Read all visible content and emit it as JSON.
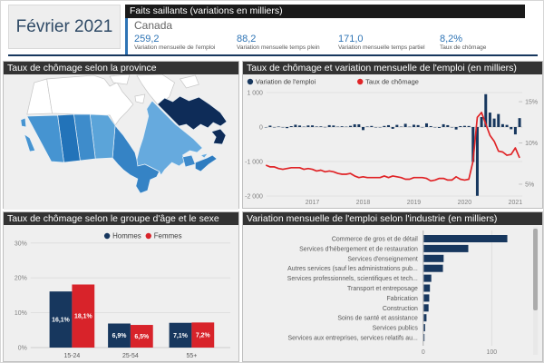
{
  "header": {
    "period": "Février 2021",
    "highlights_title": "Faits saillants (variations en milliers)",
    "region": "Canada",
    "stats": [
      {
        "value": "259,2",
        "label": "Variation mensuelle de l'emploi"
      },
      {
        "value": "88,2",
        "label": "Variation mensuelle temps plein"
      },
      {
        "value": "171,0",
        "label": "Variation mensuelle temps partiel"
      },
      {
        "value": "8,2%",
        "label": "Taux de chômage"
      }
    ]
  },
  "colors": {
    "navy": "#17375e",
    "red": "#d8232a",
    "line_red": "#e02427",
    "accent_blue": "#2e74b5",
    "panel_title_bg": "#333333",
    "header_bar_bg": "#1a1a1a",
    "panel_bg": "#efefef",
    "axis_text": "#808080",
    "label_text": "#595959"
  },
  "panels": {
    "map": {
      "title": "Taux de chômage selon la province",
      "no_data_fill": "#ffffff",
      "provinces": [
        {
          "id": "bc",
          "fill": "#4694d1"
        },
        {
          "id": "ab",
          "fill": "#2273b9"
        },
        {
          "id": "sk",
          "fill": "#3e8ccb"
        },
        {
          "id": "mb",
          "fill": "#5ba4d9"
        },
        {
          "id": "on",
          "fill": "#3583c5"
        },
        {
          "id": "qc",
          "fill": "#66aade"
        },
        {
          "id": "nb",
          "fill": "#3e8acb"
        },
        {
          "id": "pe",
          "fill": "#66aade"
        },
        {
          "id": "ns",
          "fill": "#2e7cc0"
        },
        {
          "id": "nl",
          "fill": "#0e2c58"
        }
      ]
    },
    "combo": {
      "title": "Taux de chômage et variation mensuelle de l'emploi (en milliers)"
    },
    "age_sex": {
      "title": "Taux de chômage selon le groupe d'âge et le sexe"
    },
    "industry": {
      "title": "Variation mensuelle de l'emploi selon l'industrie (en milliers)"
    }
  },
  "chart_data": [
    {
      "id": "employment-combo",
      "type": "bar+line",
      "title": "Taux de chômage et variation mensuelle de l'emploi (en milliers)",
      "x_start": "2016-02",
      "x_end": "2021-02",
      "x_tick_labels": [
        "2017",
        "2018",
        "2019",
        "2020",
        "2021"
      ],
      "left_axis": {
        "tick_labels": [
          "1 000",
          "0",
          "-1 000",
          "-2 000"
        ],
        "tick_values": [
          1000,
          0,
          -1000,
          -2000
        ]
      },
      "right_axis": {
        "tick_labels": [
          "15%",
          "10%",
          "5%"
        ],
        "tick_values": [
          15,
          10,
          5
        ]
      },
      "grid": true,
      "legend_position": "top-left",
      "series": [
        {
          "name": "Variation de l'emploi",
          "type": "bar",
          "axis": "left",
          "color": "#17375e",
          "values": [
            -2,
            41,
            -2,
            14,
            -1,
            -31,
            26,
            67,
            44,
            11,
            46,
            48,
            15,
            19,
            3,
            55,
            45,
            11,
            22,
            10,
            35,
            80,
            79,
            -88,
            15,
            32,
            -1,
            -7,
            32,
            54,
            -51,
            63,
            11,
            94,
            9,
            67,
            56,
            -7,
            107,
            27,
            -2,
            -24,
            81,
            54,
            -2,
            -71,
            27,
            35,
            30,
            -1011,
            -1994,
            290,
            953,
            419,
            246,
            378,
            84,
            62,
            -63,
            -213,
            259
          ]
        },
        {
          "name": "Taux de chômage",
          "type": "line",
          "axis": "right",
          "color": "#e02427",
          "values": [
            7.3,
            7.1,
            7.1,
            6.9,
            6.8,
            6.9,
            7.0,
            7.0,
            7.0,
            6.8,
            6.9,
            6.8,
            6.6,
            6.7,
            6.5,
            6.6,
            6.5,
            6.3,
            6.2,
            6.2,
            6.3,
            6.0,
            5.8,
            5.9,
            5.8,
            5.8,
            5.8,
            5.8,
            6.0,
            5.8,
            6.0,
            5.9,
            5.8,
            5.6,
            5.6,
            5.8,
            5.8,
            5.8,
            5.7,
            5.4,
            5.5,
            5.7,
            5.7,
            5.5,
            5.5,
            5.9,
            5.6,
            5.5,
            5.6,
            7.8,
            13.1,
            13.7,
            12.3,
            10.9,
            10.2,
            9.0,
            8.9,
            8.5,
            8.6,
            9.4,
            8.2
          ]
        }
      ]
    },
    {
      "id": "age-sex",
      "type": "bar",
      "title": "Taux de chômage selon le groupe d'âge et le sexe",
      "categories": [
        "15-24",
        "25-54",
        "55+"
      ],
      "yticks": [
        "0%",
        "10%",
        "20%",
        "30%"
      ],
      "ytick_values": [
        0,
        10,
        20,
        30
      ],
      "ylim": [
        0,
        33
      ],
      "grid": true,
      "legend_position": "top-center",
      "series": [
        {
          "name": "Hommes",
          "color": "#17375e",
          "values": [
            16.1,
            6.9,
            7.1
          ],
          "labels": [
            "16,1%",
            "6,9%",
            "7,1%"
          ]
        },
        {
          "name": "Femmes",
          "color": "#d8232a",
          "values": [
            18.1,
            6.5,
            7.2
          ],
          "labels": [
            "18,1%",
            "6,5%",
            "7,2%"
          ]
        }
      ]
    },
    {
      "id": "industry",
      "type": "bar-horizontal",
      "title": "Variation mensuelle de l'emploi selon l'industrie (en milliers)",
      "categories": [
        "Commerce de gros et de détail",
        "Services d'hébergement et de restauration",
        "Services d'enseignement",
        "Autres services (sauf les administrations pub...",
        "Services professionnels, scientifiques et tech...",
        "Transport et entreposage",
        "Fabrication",
        "Construction",
        "Soins de santé et assistance",
        "Services publics",
        "Services aux entreprises, services relatifs au..."
      ],
      "values": [
        122,
        65,
        29,
        28,
        11,
        9,
        8,
        7,
        4,
        2,
        1
      ],
      "bar_color": "#17375e",
      "xticks": [
        "0",
        "100"
      ],
      "xtick_values": [
        0,
        100
      ],
      "xlim": [
        0,
        147
      ],
      "scrollbar": true
    }
  ]
}
